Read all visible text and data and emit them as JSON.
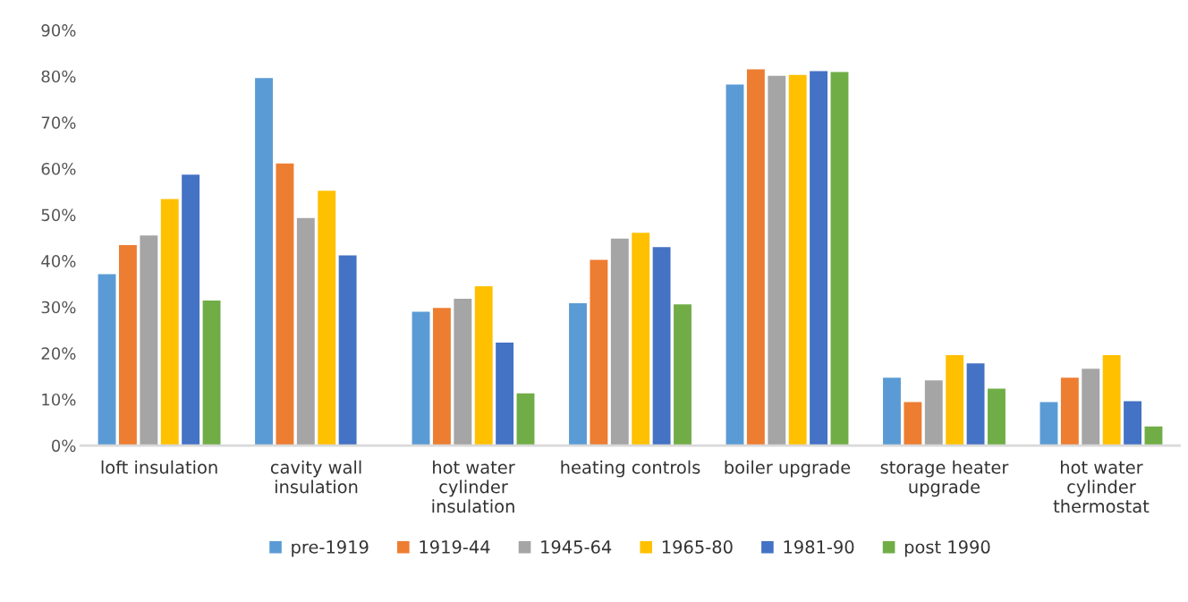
{
  "chart_data": {
    "type": "bar",
    "categories": [
      "loft insulation",
      "cavity wall insulation",
      "hot water cylinder insulation",
      "heating controls",
      "boiler upgrade",
      "storage heater upgrade",
      "hot water cylinder thermostat"
    ],
    "series": [
      {
        "name": "pre-1919",
        "color": "#5b9bd5",
        "values": [
          37.1,
          79.6,
          29.0,
          30.8,
          78.2,
          14.7,
          9.4
        ]
      },
      {
        "name": "1919-44",
        "color": "#ed7d31",
        "values": [
          43.4,
          61.1,
          29.8,
          40.2,
          81.5,
          9.4,
          14.7
        ]
      },
      {
        "name": "1945-64",
        "color": "#a5a5a5",
        "values": [
          45.5,
          49.3,
          31.8,
          44.8,
          80.1,
          14.1,
          16.6
        ]
      },
      {
        "name": "1965-80",
        "color": "#ffc000",
        "values": [
          53.4,
          55.2,
          34.5,
          46.1,
          80.3,
          19.6,
          19.6
        ]
      },
      {
        "name": "1981-90",
        "color": "#4472c4",
        "values": [
          58.7,
          41.2,
          22.3,
          43.0,
          81.1,
          17.8,
          9.6
        ]
      },
      {
        "name": "post 1990",
        "color": "#70ad47",
        "values": [
          31.4,
          null,
          11.3,
          30.6,
          80.9,
          12.3,
          4.1
        ]
      }
    ],
    "ylim": [
      0,
      90
    ],
    "yticks": [
      {
        "value": 0,
        "label": "0%"
      },
      {
        "value": 10,
        "label": "10%"
      },
      {
        "value": 20,
        "label": "20%"
      },
      {
        "value": 30,
        "label": "30%"
      },
      {
        "value": 40,
        "label": "40%"
      },
      {
        "value": 50,
        "label": "50%"
      },
      {
        "value": 60,
        "label": "60%"
      },
      {
        "value": 70,
        "label": "70%"
      },
      {
        "value": 80,
        "label": "80%"
      },
      {
        "value": 90,
        "label": "90%"
      }
    ],
    "grid": false,
    "legend": "bottom"
  }
}
